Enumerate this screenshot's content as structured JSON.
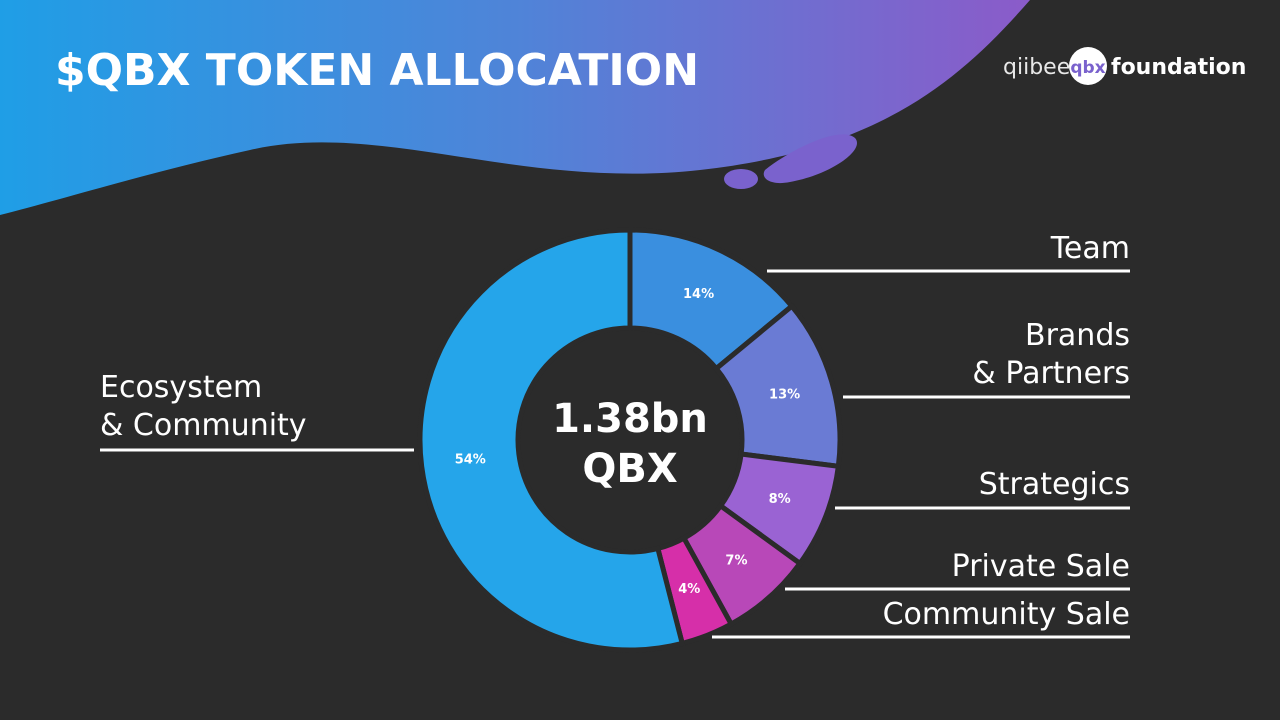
{
  "header": {
    "title": "$QBX TOKEN ALLOCATION",
    "logo": {
      "left": "qiibee",
      "badge": "qbx",
      "right": "foundation"
    }
  },
  "chart_data": {
    "type": "donut",
    "center_label": "1.38bn\nQBX",
    "categories": [
      "Team",
      "Brands\n& Partners",
      "Strategics",
      "Private Sale",
      "Community Sale",
      "Ecosystem\n& Community"
    ],
    "values": [
      14,
      13,
      8,
      7,
      4,
      54
    ],
    "value_labels": [
      "14%",
      "13%",
      "8%",
      "7%",
      "4%",
      "54%"
    ],
    "colors": [
      "#3a8fdf",
      "#6a7bd4",
      "#9a63d3",
      "#b848b8",
      "#d62fa9",
      "#25a5ea"
    ]
  }
}
